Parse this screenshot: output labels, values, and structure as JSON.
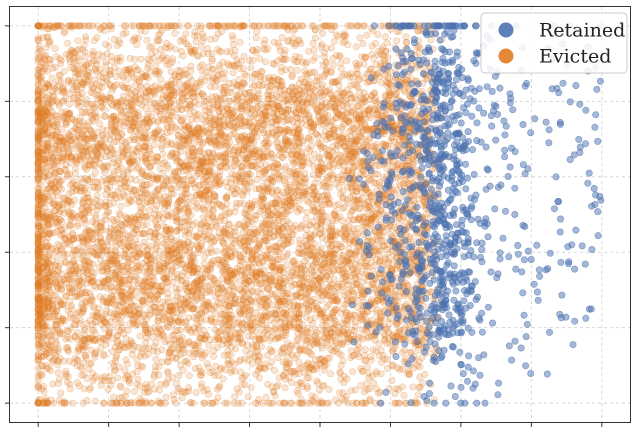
{
  "chart_data": {
    "type": "scatter",
    "title": "",
    "xlabel": "",
    "ylabel": "",
    "xlim": [
      -0.05,
      1.05
    ],
    "ylim": [
      -0.05,
      1.05
    ],
    "x_ticks": [
      0.0,
      0.125,
      0.25,
      0.375,
      0.5,
      0.625,
      0.75,
      0.875,
      1.0
    ],
    "y_ticks": [
      0.0,
      0.2,
      0.4,
      0.6,
      0.8,
      1.0
    ],
    "tick_labels_visible": false,
    "grid": true,
    "legend_position": "top-right",
    "series": [
      {
        "name": "Retained",
        "color": "#4c72b0",
        "opacity": 0.5,
        "approx_count": 1000,
        "x_range": [
          0.55,
          1.0
        ],
        "x_peak": 0.7,
        "y_range": [
          0.0,
          1.0
        ],
        "y_modes": [
          0.35,
          0.78
        ]
      },
      {
        "name": "Evicted",
        "color": "#e07b24",
        "opacity": 0.2,
        "approx_count": 8000,
        "x_range": [
          0.0,
          0.7
        ],
        "y_range": [
          0.0,
          1.0
        ],
        "y_modes": [
          0.3,
          0.72
        ]
      }
    ]
  }
}
